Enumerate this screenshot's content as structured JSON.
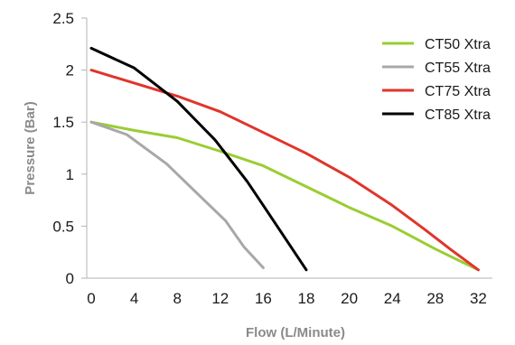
{
  "chart_data": {
    "type": "line",
    "xlabel": "Flow (L/Minute)",
    "ylabel": "Pressure (Bar)",
    "x_ticks": [
      "0",
      "4",
      "8",
      "12",
      "16",
      "18",
      "20",
      "24",
      "28",
      "32"
    ],
    "y_ticks": [
      "0",
      "0.5",
      "1",
      "1.5",
      "2",
      "2.5"
    ],
    "ylim": [
      0,
      2.5
    ],
    "grid": false,
    "legend": "top-right",
    "series": [
      {
        "name": "CT50 Xtra",
        "color": "#9acd32",
        "points": [
          [
            0,
            1.5
          ],
          [
            4,
            1.42
          ],
          [
            8,
            1.35
          ],
          [
            12,
            1.22
          ],
          [
            16,
            1.08
          ],
          [
            20,
            0.68
          ],
          [
            24,
            0.5
          ],
          [
            28,
            0.28
          ],
          [
            32,
            0.08
          ]
        ]
      },
      {
        "name": "CT55 Xtra",
        "color": "#a8a8a8",
        "points": [
          [
            0,
            1.5
          ],
          [
            3.3,
            1.38
          ],
          [
            7,
            1.1
          ],
          [
            10.5,
            0.75
          ],
          [
            12.5,
            0.55
          ],
          [
            14.2,
            0.3
          ],
          [
            16,
            0.1
          ]
        ]
      },
      {
        "name": "CT75 Xtra",
        "color": "#e0352b",
        "points": [
          [
            0,
            2.0
          ],
          [
            8,
            1.75
          ],
          [
            12,
            1.6
          ],
          [
            16,
            1.4
          ],
          [
            18,
            1.2
          ],
          [
            20,
            0.97
          ],
          [
            24,
            0.7
          ],
          [
            27,
            0.47
          ],
          [
            29.5,
            0.27
          ],
          [
            32,
            0.08
          ]
        ]
      },
      {
        "name": "CT85 Xtra",
        "color": "#000000",
        "points": [
          [
            0,
            2.21
          ],
          [
            4,
            2.02
          ],
          [
            8,
            1.7
          ],
          [
            11.5,
            1.33
          ],
          [
            14.5,
            0.93
          ],
          [
            16,
            0.7
          ],
          [
            18,
            0.08
          ]
        ]
      }
    ]
  }
}
